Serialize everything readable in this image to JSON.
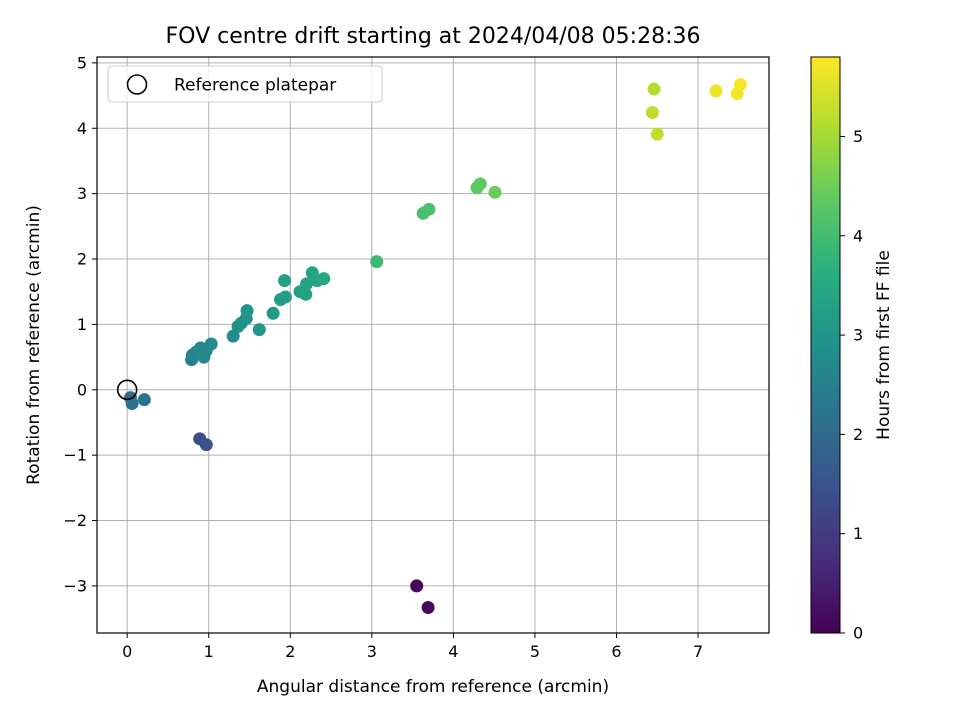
{
  "chart_data": {
    "type": "scatter",
    "title": "FOV centre drift starting at 2024/04/08 05:28:36",
    "xlabel": "Angular distance from reference (arcmin)",
    "ylabel": "Rotation from reference (arcmin)",
    "xlim": [
      -0.37,
      7.87
    ],
    "ylim": [
      -3.72,
      5.09
    ],
    "xticks": [
      0,
      1,
      2,
      3,
      4,
      5,
      6,
      7
    ],
    "yticks": [
      -3,
      -2,
      -1,
      0,
      1,
      2,
      3,
      4,
      5
    ],
    "grid": true,
    "legend": {
      "position": "top-left",
      "entries": [
        "Reference platepar"
      ]
    },
    "reference_point": {
      "label": "Reference platepar",
      "x": 0,
      "y": 0
    },
    "colorbar": {
      "label": "Hours from first FF file",
      "range": [
        0,
        5.8
      ],
      "ticks": [
        0,
        1,
        2,
        3,
        4,
        5
      ],
      "colormap": "viridis"
    },
    "points": [
      {
        "x": 3.55,
        "y": -3.0,
        "hours": 0.05
      },
      {
        "x": 3.69,
        "y": -3.33,
        "hours": 0.15
      },
      {
        "x": 0.89,
        "y": -0.75,
        "hours": 1.35
      },
      {
        "x": 0.97,
        "y": -0.84,
        "hours": 1.45
      },
      {
        "x": 0.04,
        "y": -0.12,
        "hours": 2.05
      },
      {
        "x": 0.06,
        "y": -0.21,
        "hours": 2.1
      },
      {
        "x": 0.21,
        "y": -0.15,
        "hours": 2.15
      },
      {
        "x": 0.79,
        "y": 0.46,
        "hours": 2.5
      },
      {
        "x": 0.8,
        "y": 0.53,
        "hours": 2.55
      },
      {
        "x": 0.85,
        "y": 0.58,
        "hours": 2.6
      },
      {
        "x": 0.9,
        "y": 0.64,
        "hours": 2.65
      },
      {
        "x": 0.94,
        "y": 0.5,
        "hours": 2.7
      },
      {
        "x": 0.97,
        "y": 0.6,
        "hours": 2.7
      },
      {
        "x": 1.03,
        "y": 0.7,
        "hours": 2.75
      },
      {
        "x": 1.3,
        "y": 0.82,
        "hours": 2.8
      },
      {
        "x": 1.36,
        "y": 0.97,
        "hours": 2.85
      },
      {
        "x": 1.4,
        "y": 1.02,
        "hours": 2.9
      },
      {
        "x": 1.46,
        "y": 1.09,
        "hours": 2.95
      },
      {
        "x": 1.47,
        "y": 1.21,
        "hours": 3.0
      },
      {
        "x": 1.62,
        "y": 0.92,
        "hours": 3.05
      },
      {
        "x": 1.79,
        "y": 1.17,
        "hours": 3.1
      },
      {
        "x": 1.88,
        "y": 1.38,
        "hours": 3.15
      },
      {
        "x": 1.94,
        "y": 1.42,
        "hours": 3.2
      },
      {
        "x": 1.93,
        "y": 1.67,
        "hours": 3.25
      },
      {
        "x": 2.12,
        "y": 1.5,
        "hours": 3.25
      },
      {
        "x": 2.19,
        "y": 1.46,
        "hours": 3.3
      },
      {
        "x": 2.2,
        "y": 1.62,
        "hours": 3.3
      },
      {
        "x": 2.27,
        "y": 1.79,
        "hours": 3.35
      },
      {
        "x": 2.33,
        "y": 1.67,
        "hours": 3.4
      },
      {
        "x": 2.41,
        "y": 1.7,
        "hours": 3.45
      },
      {
        "x": 3.06,
        "y": 1.96,
        "hours": 3.9
      },
      {
        "x": 3.63,
        "y": 2.7,
        "hours": 4.05
      },
      {
        "x": 3.7,
        "y": 2.76,
        "hours": 4.1
      },
      {
        "x": 4.29,
        "y": 3.09,
        "hours": 4.3
      },
      {
        "x": 4.33,
        "y": 3.15,
        "hours": 4.35
      },
      {
        "x": 4.51,
        "y": 3.02,
        "hours": 4.45
      },
      {
        "x": 6.46,
        "y": 4.6,
        "hours": 5.15
      },
      {
        "x": 6.44,
        "y": 4.24,
        "hours": 5.2
      },
      {
        "x": 6.5,
        "y": 3.91,
        "hours": 5.25
      },
      {
        "x": 7.22,
        "y": 4.57,
        "hours": 5.65
      },
      {
        "x": 7.48,
        "y": 4.53,
        "hours": 5.7
      },
      {
        "x": 7.52,
        "y": 4.67,
        "hours": 5.75
      }
    ]
  }
}
